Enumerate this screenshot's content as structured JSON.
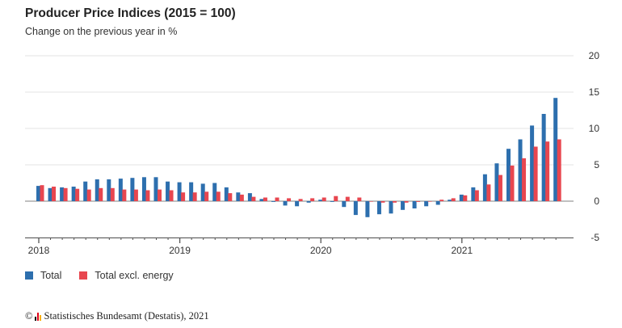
{
  "chart_data": {
    "type": "bar",
    "title": "Producer Price Indices (2015 = 100)",
    "subtitle": "Change on the previous year in %",
    "ylim": [
      -5,
      20
    ],
    "yticks": [
      20,
      15,
      10,
      5,
      0,
      -5
    ],
    "grid": true,
    "x_tick_labels": [
      "2018",
      "2019",
      "2020",
      "2021"
    ],
    "categories": [
      "2018-01",
      "2018-02",
      "2018-03",
      "2018-04",
      "2018-05",
      "2018-06",
      "2018-07",
      "2018-08",
      "2018-09",
      "2018-10",
      "2018-11",
      "2018-12",
      "2019-01",
      "2019-02",
      "2019-03",
      "2019-04",
      "2019-05",
      "2019-06",
      "2019-07",
      "2019-08",
      "2019-09",
      "2019-10",
      "2019-11",
      "2019-12",
      "2020-01",
      "2020-02",
      "2020-03",
      "2020-04",
      "2020-05",
      "2020-06",
      "2020-07",
      "2020-08",
      "2020-09",
      "2020-10",
      "2020-11",
      "2020-12",
      "2021-01",
      "2021-02",
      "2021-03",
      "2021-04",
      "2021-05",
      "2021-06",
      "2021-07",
      "2021-08",
      "2021-09"
    ],
    "series": [
      {
        "name": "Total",
        "color": "#2d6fae",
        "values": [
          2.1,
          1.8,
          1.9,
          2.0,
          2.7,
          3.0,
          3.0,
          3.1,
          3.2,
          3.3,
          3.3,
          2.7,
          2.6,
          2.6,
          2.4,
          2.5,
          1.9,
          1.2,
          1.1,
          0.3,
          -0.1,
          -0.6,
          -0.7,
          -0.2,
          0.2,
          -0.1,
          -0.8,
          -1.9,
          -2.2,
          -1.8,
          -1.7,
          -1.2,
          -1.0,
          -0.7,
          -0.5,
          0.2,
          0.9,
          1.9,
          3.7,
          5.2,
          7.2,
          8.5,
          10.4,
          12.0,
          14.2
        ]
      },
      {
        "name": "Total excl. energy",
        "color": "#e8464f",
        "values": [
          2.2,
          2.0,
          1.8,
          1.7,
          1.6,
          1.8,
          1.8,
          1.6,
          1.6,
          1.5,
          1.6,
          1.5,
          1.2,
          1.2,
          1.3,
          1.3,
          1.1,
          0.9,
          0.6,
          0.5,
          0.5,
          0.4,
          0.3,
          0.4,
          0.5,
          0.7,
          0.6,
          0.5,
          0.0,
          -0.2,
          -0.2,
          -0.2,
          -0.1,
          0.0,
          0.2,
          0.4,
          0.8,
          1.5,
          2.3,
          3.6,
          4.9,
          5.9,
          7.5,
          8.2,
          8.5
        ]
      }
    ]
  },
  "footer": {
    "copyright_symbol": "©",
    "source": "Statistisches Bundesamt (Destatis), 2021",
    "logo_colors": [
      "#000000",
      "#e2001a",
      "#f9b000"
    ]
  }
}
